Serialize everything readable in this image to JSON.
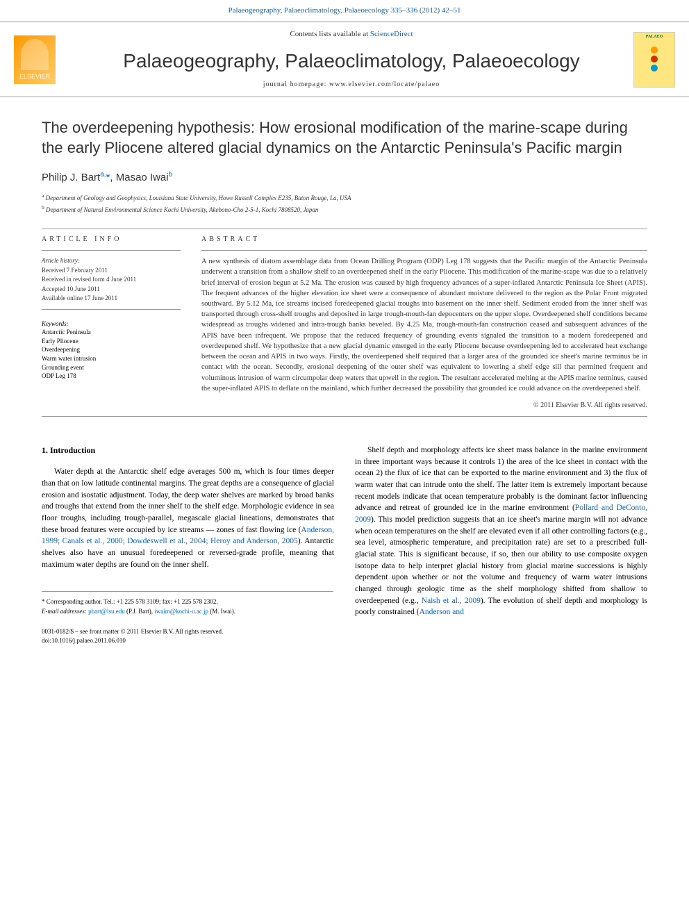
{
  "header": {
    "top_link": "Palaeogeography, Palaeoclimatology, Palaeoecology 335–336 (2012) 42–51",
    "contents_line_prefix": "Contents lists available at ",
    "contents_line_link": "ScienceDirect",
    "journal_name": "Palaeogeography, Palaeoclimatology, Palaeoecology",
    "homepage_text": "journal homepage: www.elsevier.com/locate/palaeo",
    "publisher_logo_text": "ELSEVIER",
    "cover_short": "PALAEO"
  },
  "article": {
    "title": "The overdeepening hypothesis: How erosional modification of the marine-scape during the early Pliocene altered glacial dynamics on the Antarctic Peninsula's Pacific margin",
    "author1": "Philip J. Bart",
    "author1_sup": "a,",
    "author1_star": "*",
    "author2": "Masao Iwai",
    "author2_sup": "b",
    "aff_a_sup": "a",
    "aff_a": " Department of Geology and Geophysics, Louisiana State University, Howe Russell Complex E235, Baton Rouge, La, USA",
    "aff_b_sup": "b",
    "aff_b": " Department of Natural Environmental Science Kochi University, Akebono-Cho 2-5-1, Kochi 7808520, Japan"
  },
  "article_info": {
    "heading": "ARTICLE INFO",
    "history_label": "Article history:",
    "received": "Received 7 February 2011",
    "revised": "Received in revised form 4 June 2011",
    "accepted": "Accepted 10 June 2011",
    "online": "Available online 17 June 2011",
    "keywords_label": "Keywords:",
    "keywords": [
      "Antarctic Peninsula",
      "Early Pliocene",
      "Overdeepening",
      "Warm water intrusion",
      "Grounding event",
      "ODP Leg 178"
    ]
  },
  "abstract": {
    "heading": "ABSTRACT",
    "text": "A new synthesis of diatom assemblage data from Ocean Drilling Program (ODP) Leg 178 suggests that the Pacific margin of the Antarctic Peninsula underwent a transition from a shallow shelf to an overdeepened shelf in the early Pliocene. This modification of the marine-scape was due to a relatively brief interval of erosion begun at 5.2 Ma. The erosion was caused by high frequency advances of a super-inflated Antarctic Peninsula Ice Sheet (APIS). The frequent advances of the higher elevation ice sheet were a consequence of abundant moisture delivered to the region as the Polar Front migrated southward. By 5.12 Ma, ice streams incised foredeepened glacial troughs into basement on the inner shelf. Sediment eroded from the inner shelf was transported through cross-shelf troughs and deposited in large trough-mouth-fan depocenters on the upper slope. Overdeepened shelf conditions became widespread as troughs widened and intra-trough banks beveled. By 4.25 Ma, trough-mouth-fan construction ceased and subsequent advances of the APIS have been infrequent. We propose that the reduced frequency of grounding events signaled the transition to a modern foredeepened and overdeepened shelf. We hypothesize that a new glacial dynamic emerged in the early Pliocene because overdeepening led to accelerated heat exchange between the ocean and APIS in two ways. Firstly, the overdeepened shelf required that a larger area of the grounded ice sheet's marine terminus be in contact with the ocean. Secondly, erosional deepening of the outer shelf was equivalent to lowering a shelf edge sill that permitted frequent and voluminous intrusion of warm circumpolar deep waters that upwell in the region. The resultant accelerated melting at the APIS marine terminus, caused the super-inflated APIS to deflate on the mainland, which further decreased the possibility that grounded ice could advance on the overdeepened shelf.",
    "copyright": "© 2011 Elsevier B.V. All rights reserved."
  },
  "introduction": {
    "heading": "1. Introduction",
    "col1_p1_a": "Water depth at the Antarctic shelf edge averages 500 m, which is four times deeper than that on low latitude continental margins. The great depths are a consequence of glacial erosion and isostatic adjustment. Today, the deep water shelves are marked by broad banks and troughs that extend from the inner shelf to the shelf edge. Morphologic evidence in sea floor troughs, including trough-parallel, megascale glacial lineations, demonstrates that these broad features were occupied by ice streams — zones of fast flowing ice (",
    "col1_p1_cite1": "Anderson, 1999; Canals et al., 2000; Dowdeswell et al., 2004; Heroy and Anderson, 2005",
    "col1_p1_b": "). Antarctic shelves also have an unusual foredeepened or reversed-grade profile, meaning that maximum water depths are found on the inner shelf.",
    "col2_p1_a": "Shelf depth and morphology affects ice sheet mass balance in the marine environment in three important ways because it controls 1) the area of the ice sheet in contact with the ocean 2) the flux of ice that can be exported to the marine environment and 3) the flux of warm water that can intrude onto the shelf. The latter item is extremely important because recent models indicate that ocean temperature probably is the dominant factor influencing advance and retreat of grounded ice in the marine environment (",
    "col2_p1_cite1": "Pollard and DeConto, 2009",
    "col2_p1_b": "). This model prediction suggests that an ice sheet's marine margin will not advance when ocean temperatures on the shelf are elevated even if all other controlling factors (e.g., sea level, atmospheric temperature, and precipitation rate) are set to a prescribed full-glacial state. This is significant because, if so, then our ability to use composite oxygen isotope data to help interpret glacial history from glacial marine successions is highly dependent upon whether or not the volume and frequency of warm water intrusions changed through geologic time as the shelf morphology shifted from shallow to overdeepened (e.g., ",
    "col2_p1_cite2": "Naish et al., 2009",
    "col2_p1_c": "). The evolution of shelf depth and morphology is poorly constrained (",
    "col2_p1_cite3": "Anderson and"
  },
  "footer": {
    "corresponding_star": "*",
    "corresponding_text": " Corresponding author. Tel.: +1 225 578 3109; fax: +1 225 578 2302.",
    "email_label": "E-mail addresses: ",
    "email1": "pbart@lsu.edu",
    "email1_who": " (P.J. Bart), ",
    "email2": "iwaim@kochi-u.ac.jp",
    "email2_who": " (M. Iwai).",
    "issn_line": "0031-0182/$ – see front matter © 2011 Elsevier B.V. All rights reserved.",
    "doi_prefix": "doi:",
    "doi": "10.1016/j.palaeo.2011.06.010"
  },
  "colors": {
    "link": "#0066cc",
    "text": "#333333",
    "cover_bg": "#ffe680",
    "cover_title": "#006633",
    "dot1": "#ff9900",
    "dot2": "#cc3300",
    "dot3": "#0099cc"
  }
}
